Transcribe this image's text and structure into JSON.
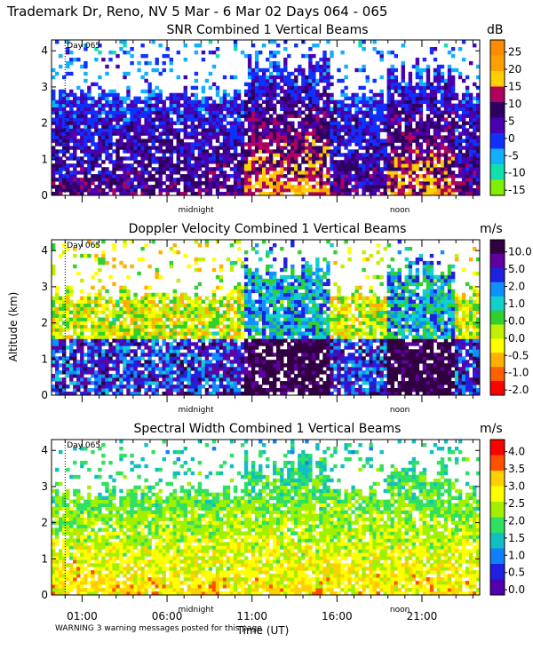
{
  "header": {
    "title": "Trademark Dr, Reno, NV   5 Mar -  6 Mar 02 Days 064 - 065",
    "warning": "WARNING  3 warning messages posted for this page"
  },
  "shared": {
    "ylabel": "Altitude (km)",
    "xlabel": "Time (UT)",
    "x_ticks": [
      "01:00",
      "06:00",
      "11:00",
      "16:00",
      "21:00"
    ],
    "x_tick_hours": [
      1,
      6,
      11,
      16,
      21
    ],
    "x_range_hours": [
      -0.8,
      24.4
    ],
    "ylim": [
      0,
      4.3
    ],
    "y_ticks": [
      0,
      1,
      2,
      3,
      4
    ],
    "day_marker": "Day 065",
    "midnight_label": "midnight",
    "noon_label": "noon"
  },
  "chart_data": [
    {
      "type": "heatmap",
      "title": "SNR Combined 1 Vertical Beams",
      "unit": "dB",
      "colorbar_ticks": [
        "25",
        "20",
        "15",
        "10",
        "5",
        "0",
        "-5",
        "-10",
        "-15"
      ],
      "colorbar_colors": [
        "#ff8c00",
        "#ffa000",
        "#ffd000",
        "#b00060",
        "#300060",
        "#4800b0",
        "#1030ff",
        "#10b0ff",
        "#10e0b0",
        "#80f000"
      ],
      "zrange": [
        -15,
        28
      ]
    },
    {
      "type": "heatmap",
      "title": "Doppler Velocity Combined 1 Vertical Beams",
      "unit": "m/s",
      "colorbar_ticks": [
        "10.0",
        "5.0",
        "2.0",
        "1.0",
        "0.0",
        "0.0",
        "-0.5",
        "-1.0",
        "-2.0"
      ],
      "colorbar_colors": [
        "#300040",
        "#6000a0",
        "#2020e0",
        "#1090ff",
        "#10d0d0",
        "#30d030",
        "#c0f000",
        "#ffff00",
        "#ffb000",
        "#ff6000",
        "#ff0000"
      ],
      "zrange": [
        -2,
        10
      ]
    },
    {
      "type": "heatmap",
      "title": "Spectral Width Combined 1 Vertical Beams",
      "unit": "m/s",
      "colorbar_ticks": [
        "4.0",
        "3.5",
        "3.0",
        "2.5",
        "2.0",
        "1.5",
        "1.0",
        "0.5",
        "0.0"
      ],
      "colorbar_colors": [
        "#ff0000",
        "#ff5000",
        "#ffd000",
        "#ffff00",
        "#a0f000",
        "#30e060",
        "#10c0c0",
        "#1080ff",
        "#2020e0",
        "#5000b0"
      ],
      "zrange": [
        0,
        4.2
      ]
    }
  ]
}
